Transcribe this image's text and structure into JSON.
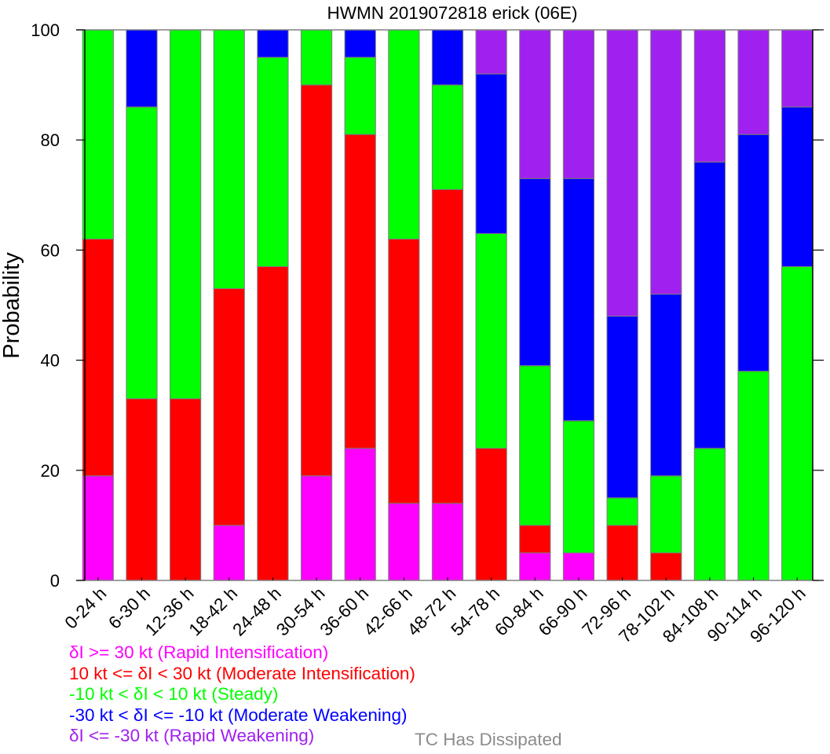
{
  "chart_data": {
    "type": "bar",
    "stacked": true,
    "title": "HWMN 2019072818 erick (06E)",
    "xlabel": "",
    "ylabel": "Probability",
    "ylim": [
      0,
      100
    ],
    "yticks": [
      0,
      20,
      40,
      60,
      80,
      100
    ],
    "grid": false,
    "categories": [
      "0-24 h",
      "6-30 h",
      "12-36 h",
      "18-42 h",
      "24-48 h",
      "30-54 h",
      "36-60 h",
      "42-66 h",
      "48-72 h",
      "54-78 h",
      "60-84 h",
      "66-90 h",
      "72-96 h",
      "78-102 h",
      "84-108 h",
      "90-114 h",
      "96-120 h"
    ],
    "series": [
      {
        "name": "Rapid Intensification",
        "legend": "δI >= 30 kt (Rapid Intensification)",
        "color": "#ff00ff",
        "values": [
          19,
          0,
          0,
          10,
          0,
          19,
          24,
          14,
          14,
          0,
          5,
          5,
          0,
          0,
          0,
          0,
          0
        ]
      },
      {
        "name": "Moderate Intensification",
        "legend": "10 kt <= δI < 30 kt (Moderate Intensification)",
        "color": "#ff0000",
        "values": [
          43,
          33,
          33,
          43,
          57,
          71,
          57,
          48,
          57,
          24,
          5,
          0,
          10,
          5,
          0,
          0,
          0
        ]
      },
      {
        "name": "Steady",
        "legend": "-10 kt < δI < 10 kt (Steady)",
        "color": "#00ff00",
        "values": [
          38,
          53,
          67,
          47,
          38,
          10,
          14,
          38,
          19,
          39,
          29,
          24,
          5,
          14,
          24,
          38,
          57
        ]
      },
      {
        "name": "Moderate Weakening",
        "legend": "-30 kt < δI <= -10 kt (Moderate Weakening)",
        "color": "#0000ff",
        "values": [
          0,
          14,
          0,
          0,
          5,
          0,
          5,
          0,
          10,
          29,
          34,
          44,
          33,
          33,
          52,
          43,
          29
        ]
      },
      {
        "name": "Rapid Weakening",
        "legend": "δI <= -30 kt (Rapid Weakening)",
        "color": "#a020f0",
        "values": [
          0,
          0,
          0,
          0,
          0,
          0,
          0,
          0,
          0,
          8,
          27,
          27,
          52,
          48,
          24,
          19,
          14
        ]
      }
    ],
    "legend_extra": {
      "label": "TC Has Dissipated",
      "color": "#8c8c8c"
    },
    "legend_position": "bottom-left"
  }
}
